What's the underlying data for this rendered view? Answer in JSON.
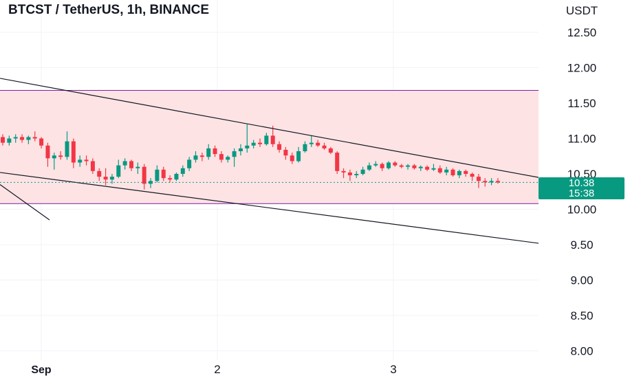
{
  "header": {
    "title": "BTCST / TetherUS, 1h, BINANCE"
  },
  "price_axis": {
    "unit": "USDT",
    "ticks": [
      "12.50",
      "12.00",
      "11.50",
      "11.00",
      "10.50",
      "10.00",
      "9.50",
      "9.00",
      "8.50",
      "8.00"
    ]
  },
  "time_axis": {
    "ticks": [
      "Sep",
      "2",
      "3"
    ]
  },
  "last_price": {
    "price": "10.38",
    "countdown": "15:38"
  },
  "colors": {
    "up": "#089981",
    "down": "#f23645",
    "zone_fill": "#fde3e4",
    "zone_border": "#7b1fa2",
    "trendline": "#131722",
    "price_line": "#089981",
    "grid": "#f0f3fa"
  },
  "chart_data": {
    "type": "candlestick",
    "title": "BTCST / TetherUS, 1h, BINANCE",
    "ylabel": "USDT",
    "ylim": [
      7.9,
      12.75
    ],
    "y_ticks": [
      8.0,
      8.5,
      9.0,
      9.5,
      10.0,
      10.5,
      11.0,
      11.5,
      12.0,
      12.5
    ],
    "x_ticks": [
      "Sep",
      "2",
      "3"
    ],
    "grid": true,
    "last_price": 10.38,
    "ohlc": [
      [
        11.02,
        11.06,
        10.9,
        10.94
      ],
      [
        10.94,
        11.04,
        10.9,
        11.0
      ],
      [
        11.0,
        11.06,
        10.94,
        11.02
      ],
      [
        11.02,
        11.06,
        10.94,
        10.98
      ],
      [
        10.98,
        11.04,
        10.92,
        11.02
      ],
      [
        11.02,
        11.1,
        10.96,
        11.0
      ],
      [
        11.0,
        11.02,
        10.86,
        10.9
      ],
      [
        10.9,
        10.94,
        10.6,
        10.72
      ],
      [
        10.72,
        10.8,
        10.56,
        10.76
      ],
      [
        10.76,
        10.82,
        10.7,
        10.74
      ],
      [
        10.74,
        11.1,
        10.7,
        10.96
      ],
      [
        10.96,
        11.0,
        10.58,
        10.66
      ],
      [
        10.66,
        10.76,
        10.6,
        10.7
      ],
      [
        10.7,
        10.76,
        10.62,
        10.68
      ],
      [
        10.68,
        10.72,
        10.5,
        10.54
      ],
      [
        10.54,
        10.58,
        10.4,
        10.46
      ],
      [
        10.46,
        10.58,
        10.34,
        10.42
      ],
      [
        10.42,
        10.5,
        10.36,
        10.46
      ],
      [
        10.46,
        10.7,
        10.44,
        10.62
      ],
      [
        10.62,
        10.72,
        10.56,
        10.68
      ],
      [
        10.68,
        10.7,
        10.54,
        10.58
      ],
      [
        10.58,
        10.66,
        10.5,
        10.6
      ],
      [
        10.6,
        10.64,
        10.28,
        10.36
      ],
      [
        10.36,
        10.44,
        10.3,
        10.4
      ],
      [
        10.4,
        10.62,
        10.38,
        10.56
      ],
      [
        10.56,
        10.6,
        10.4,
        10.44
      ],
      [
        10.44,
        10.48,
        10.38,
        10.42
      ],
      [
        10.42,
        10.52,
        10.4,
        10.5
      ],
      [
        10.5,
        10.62,
        10.46,
        10.58
      ],
      [
        10.58,
        10.74,
        10.54,
        10.7
      ],
      [
        10.7,
        10.82,
        10.66,
        10.76
      ],
      [
        10.76,
        10.8,
        10.68,
        10.74
      ],
      [
        10.74,
        10.92,
        10.7,
        10.86
      ],
      [
        10.86,
        10.9,
        10.74,
        10.78
      ],
      [
        10.78,
        10.82,
        10.66,
        10.7
      ],
      [
        10.7,
        10.76,
        10.66,
        10.74
      ],
      [
        10.74,
        10.86,
        10.6,
        10.82
      ],
      [
        10.82,
        10.92,
        10.76,
        10.86
      ],
      [
        10.86,
        11.2,
        10.8,
        10.9
      ],
      [
        10.9,
        10.98,
        10.86,
        10.94
      ],
      [
        10.94,
        11.0,
        10.88,
        10.92
      ],
      [
        10.92,
        11.08,
        10.9,
        11.04
      ],
      [
        11.04,
        11.18,
        10.88,
        10.92
      ],
      [
        10.92,
        10.96,
        10.8,
        10.84
      ],
      [
        10.84,
        10.88,
        10.7,
        10.76
      ],
      [
        10.76,
        10.8,
        10.64,
        10.68
      ],
      [
        10.68,
        10.88,
        10.66,
        10.82
      ],
      [
        10.82,
        10.96,
        10.8,
        10.92
      ],
      [
        10.92,
        11.04,
        10.88,
        10.94
      ],
      [
        10.94,
        10.98,
        10.88,
        10.9
      ],
      [
        10.9,
        10.94,
        10.84,
        10.86
      ],
      [
        10.86,
        10.88,
        10.78,
        10.8
      ],
      [
        10.8,
        10.82,
        10.5,
        10.54
      ],
      [
        10.54,
        10.58,
        10.44,
        10.52
      ],
      [
        10.52,
        10.56,
        10.4,
        10.48
      ],
      [
        10.48,
        10.54,
        10.44,
        10.5
      ],
      [
        10.5,
        10.6,
        10.48,
        10.56
      ],
      [
        10.56,
        10.66,
        10.54,
        10.62
      ],
      [
        10.62,
        10.68,
        10.6,
        10.64
      ],
      [
        10.64,
        10.66,
        10.54,
        10.58
      ],
      [
        10.58,
        10.68,
        10.56,
        10.66
      ],
      [
        10.66,
        10.68,
        10.6,
        10.62
      ],
      [
        10.62,
        10.64,
        10.58,
        10.6
      ],
      [
        10.6,
        10.64,
        10.56,
        10.62
      ],
      [
        10.62,
        10.64,
        10.56,
        10.58
      ],
      [
        10.58,
        10.62,
        10.54,
        10.6
      ],
      [
        10.6,
        10.62,
        10.54,
        10.56
      ],
      [
        10.56,
        10.64,
        10.54,
        10.58
      ],
      [
        10.58,
        10.62,
        10.5,
        10.52
      ],
      [
        10.52,
        10.6,
        10.48,
        10.56
      ],
      [
        10.56,
        10.58,
        10.46,
        10.48
      ],
      [
        10.48,
        10.56,
        10.44,
        10.54
      ],
      [
        10.54,
        10.56,
        10.46,
        10.5
      ],
      [
        10.5,
        10.52,
        10.4,
        10.46
      ],
      [
        10.46,
        10.5,
        10.3,
        10.4
      ],
      [
        10.4,
        10.44,
        10.32,
        10.38
      ],
      [
        10.38,
        10.44,
        10.34,
        10.4
      ],
      [
        10.4,
        10.44,
        10.36,
        10.38
      ]
    ],
    "resistance_zone": {
      "top": 11.68,
      "bottom": 10.08
    },
    "trendlines": [
      {
        "from": [
          "before Sep",
          11.85
        ],
        "to": [
          "after 3",
          10.45
        ]
      },
      {
        "from": [
          "before Sep",
          10.52
        ],
        "to": [
          "after 3",
          9.52
        ]
      },
      {
        "from": [
          "before Sep",
          10.35
        ],
        "to": [
          "Sep",
          9.85
        ]
      }
    ]
  }
}
